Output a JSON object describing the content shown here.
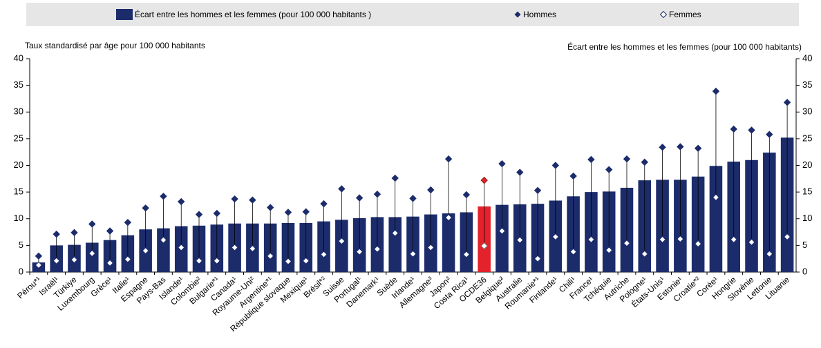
{
  "chart_data": {
    "type": "bar",
    "y_label": "Taux standardisé par âge pour 100 000 habitants",
    "y2_label": "Écart entre les hommes et les femmes (pour 100 000 habitants)",
    "categories": [
      "Pérou*¹",
      "Israël¹",
      "Türkiye",
      "Luxembourg",
      "Grèce¹",
      "Italie¹",
      "Espagne",
      "Pays-Bas",
      "Islande¹",
      "Colombie²",
      "Bulgarie*¹",
      "Canada¹",
      "Royaume-Uni²",
      "Argentine*¹",
      "République slovaque",
      "Mexique¹",
      "Brésil*²",
      "Suisse",
      "Portugal¹",
      "Danemark¹",
      "Suède",
      "Irlande¹",
      "Allemagne³",
      "Japon²",
      "Costa Rica¹",
      "OCDE36",
      "Belgique²",
      "Australie",
      "Roumanie*¹",
      "Finlande¹",
      "Chili¹",
      "France¹",
      "Tchéquie",
      "Autriche",
      "Pologne¹",
      "États-Unis¹",
      "Estonie¹",
      "Croatie*²",
      "Corée¹",
      "Hongrie",
      "Slovénie",
      "Lettonie",
      "Lituanie"
    ],
    "series": [
      {
        "name": "Écart entre les hommes et les femmes (pour 100 000 habitants )",
        "color": "#1c2c6b",
        "axis": "y2",
        "values": [
          1.8,
          5.0,
          5.1,
          5.5,
          6.0,
          6.9,
          8.0,
          8.2,
          8.6,
          8.7,
          8.9,
          9.1,
          9.1,
          9.1,
          9.2,
          9.2,
          9.5,
          9.8,
          10.1,
          10.3,
          10.3,
          10.4,
          10.8,
          11.0,
          11.2,
          12.3,
          12.6,
          12.7,
          12.8,
          13.4,
          14.2,
          15.0,
          15.1,
          15.8,
          17.2,
          17.3,
          17.3,
          17.9,
          19.9,
          20.7,
          21.0,
          22.4,
          25.2
        ]
      },
      {
        "name": "Hommes",
        "color": "#1c2c6b",
        "values": [
          3.0,
          7.1,
          7.4,
          9.0,
          7.7,
          9.3,
          12.0,
          14.2,
          13.2,
          10.8,
          11.0,
          13.7,
          13.5,
          12.1,
          11.2,
          11.3,
          12.8,
          15.6,
          13.9,
          14.6,
          17.6,
          13.8,
          15.4,
          21.2,
          14.5,
          17.2,
          20.3,
          18.7,
          15.3,
          20.0,
          18.0,
          21.1,
          19.2,
          21.2,
          20.6,
          23.4,
          23.5,
          23.2,
          33.9,
          26.8,
          26.6,
          25.8,
          31.8
        ]
      },
      {
        "name": "Femmes",
        "color": "#ffffff",
        "values": [
          1.3,
          2.1,
          2.3,
          3.5,
          1.7,
          2.4,
          4.0,
          6.0,
          4.6,
          2.1,
          2.1,
          4.6,
          4.4,
          3.0,
          2.0,
          2.1,
          3.3,
          5.8,
          3.8,
          4.3,
          7.3,
          3.4,
          4.6,
          10.2,
          3.3,
          4.9,
          7.7,
          6.0,
          2.5,
          6.6,
          3.8,
          6.1,
          4.1,
          5.4,
          3.4,
          6.1,
          6.2,
          5.3,
          14.0,
          6.1,
          5.6,
          3.4,
          6.6
        ]
      }
    ],
    "highlight_category": "OCDE36",
    "highlight_color": "#e3222b",
    "ylim": [
      0,
      40
    ],
    "yticks": [
      0,
      5,
      10,
      15,
      20,
      25,
      30,
      35,
      40
    ],
    "y2lim": [
      0,
      40
    ],
    "y2ticks": [
      0,
      5,
      10,
      15,
      20,
      25,
      30,
      35,
      40
    ],
    "grid": false
  }
}
